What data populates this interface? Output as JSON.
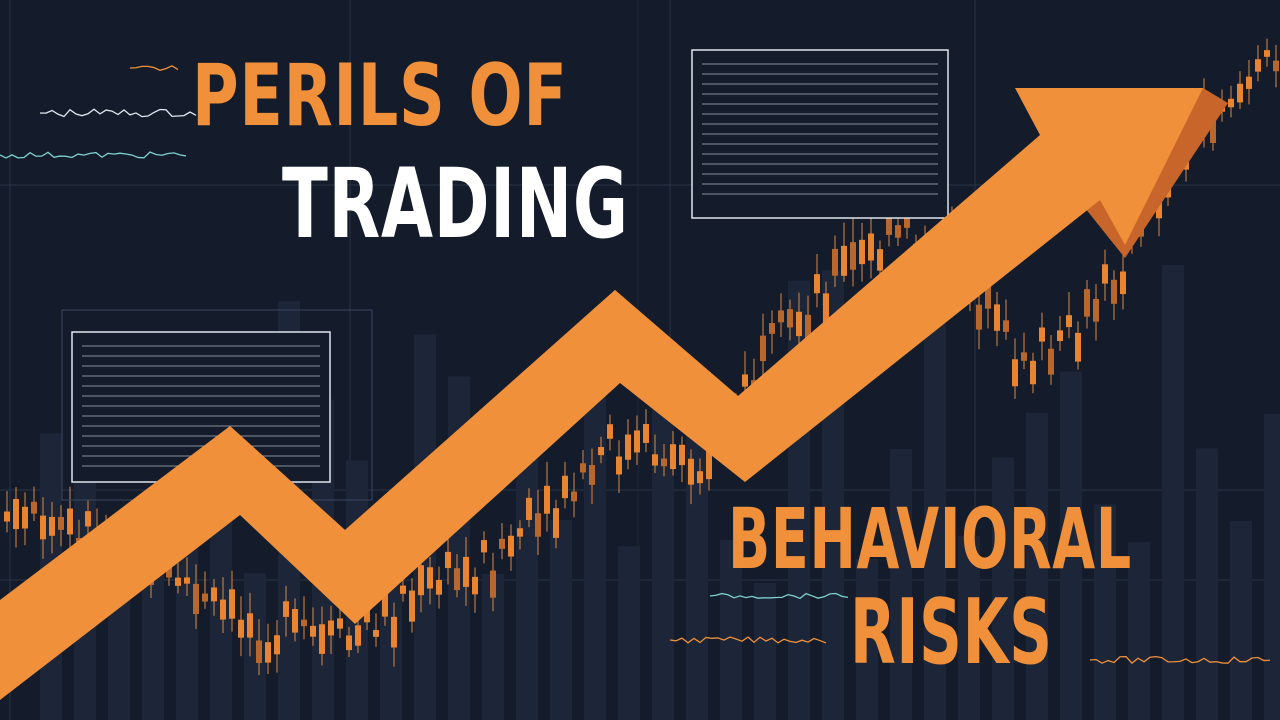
{
  "title": {
    "line1": "PERILS OF",
    "line2": "TRADING"
  },
  "subtitle": {
    "line1": "BEHAVIORAL",
    "line2": "RISKS"
  },
  "colors": {
    "background": "#141c2b",
    "accent": "#f0903a",
    "accent_dark": "#c8652a",
    "title_white": "#ffffff",
    "grid": "#2a3447",
    "teal": "#7fd0d0"
  },
  "chart_data": {
    "type": "candlestick",
    "trend_arrow": "up",
    "annotation_panels": 2
  }
}
